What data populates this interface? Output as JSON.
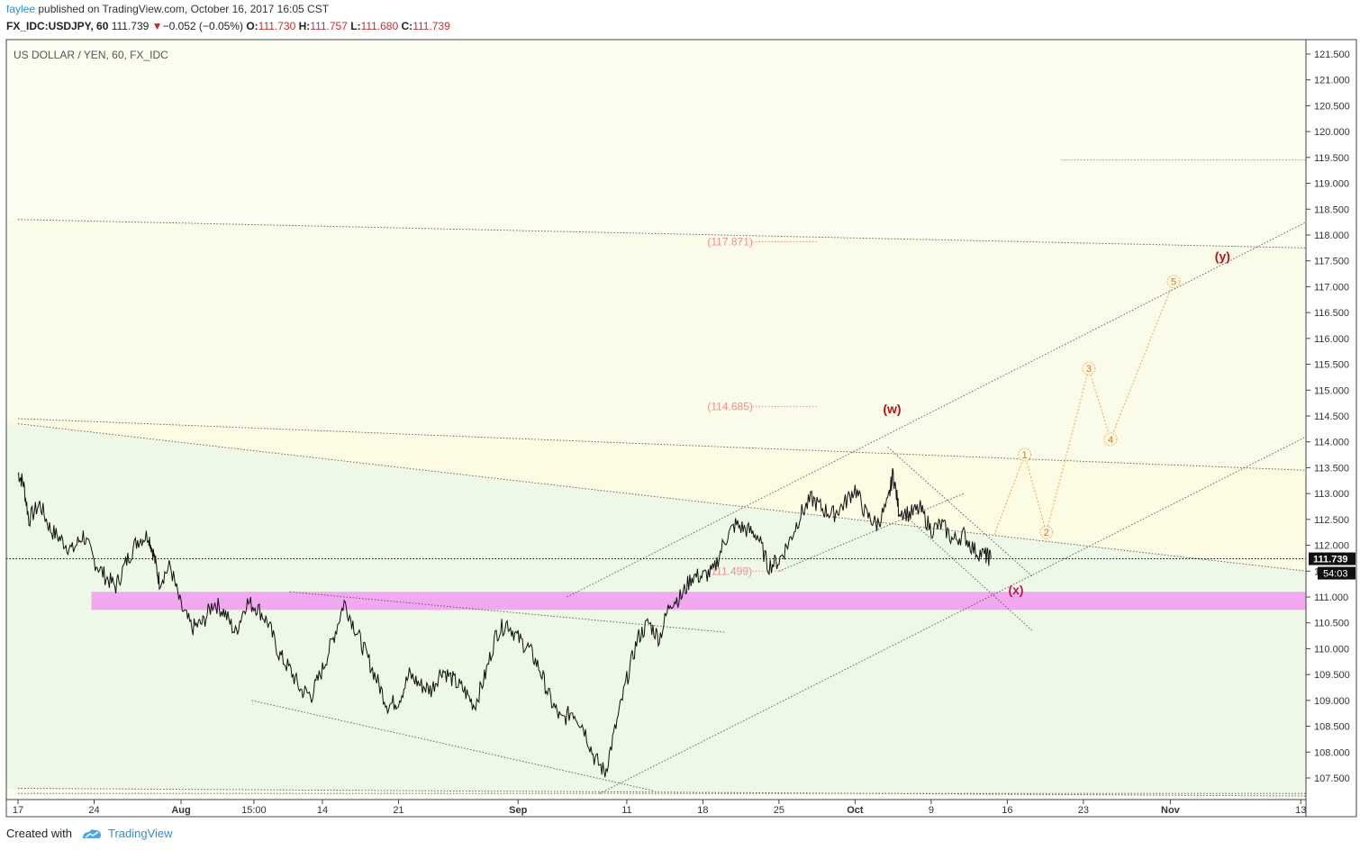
{
  "header": {
    "author": "faylee",
    "published_text": "published on TradingView.com, October 16, 2017 16:05 CST",
    "symbol": "FX_IDC:USDJPY, 60",
    "last": "111.739",
    "change": "−0.052 (−0.05%)",
    "o_label": "O:",
    "o_value": "111.730",
    "h_label": "H:",
    "h_value": "111.757",
    "l_label": "L:",
    "l_value": "111.680",
    "c_label": "C:",
    "c_value": "111.739"
  },
  "footer": {
    "created_with": "Created with",
    "brand": "TradingView"
  },
  "colors": {
    "candle": "#111111",
    "zone": "#f0a8ee",
    "wave_orange": "#f0a34a",
    "wave_red": "#b5121b",
    "fib": "#ef8f8f",
    "price_tag": "#111111"
  },
  "chart_data": {
    "type": "line",
    "title": "US DOLLAR / YEN, 60, FX_IDC",
    "ylim": [
      107.2,
      121.75
    ],
    "yticks": [
      "121.500",
      "121.000",
      "120.500",
      "120.000",
      "119.500",
      "119.000",
      "118.500",
      "118.000",
      "117.500",
      "117.000",
      "116.500",
      "116.000",
      "115.500",
      "115.000",
      "114.500",
      "114.000",
      "113.500",
      "113.000",
      "112.500",
      "112.000",
      "111.500",
      "111.000",
      "110.500",
      "110.000",
      "109.500",
      "109.000",
      "108.500",
      "108.000",
      "107.500"
    ],
    "xlim": [
      0,
      112
    ],
    "xticks": [
      {
        "label": "17",
        "day": 0
      },
      {
        "label": "24",
        "day": 7
      },
      {
        "label": "Aug",
        "day": 15
      },
      {
        "label": "15:00",
        "day": 21.7
      },
      {
        "label": "14",
        "day": 28
      },
      {
        "label": "21",
        "day": 35
      },
      {
        "label": "Sep",
        "day": 46
      },
      {
        "label": "11",
        "day": 56
      },
      {
        "label": "18",
        "day": 63
      },
      {
        "label": "25",
        "day": 70
      },
      {
        "label": "Oct",
        "day": 77
      },
      {
        "label": "9",
        "day": 84
      },
      {
        "label": "16",
        "day": 91
      },
      {
        "label": "23",
        "day": 98
      },
      {
        "label": "Nov",
        "day": 106
      },
      {
        "label": "13",
        "day": 118
      }
    ],
    "series": [
      {
        "values": [
          [
            0,
            113.4
          ],
          [
            0.5,
            113.2
          ],
          [
            1,
            112.5
          ],
          [
            2,
            112.8
          ],
          [
            3,
            112.3
          ],
          [
            4,
            112.1
          ],
          [
            5,
            111.9
          ],
          [
            6,
            112.2
          ],
          [
            7,
            111.7
          ],
          [
            8,
            111.4
          ],
          [
            9,
            111.2
          ],
          [
            10,
            111.7
          ],
          [
            11,
            112.1
          ],
          [
            12,
            112.2
          ],
          [
            12.5,
            111.8
          ],
          [
            13,
            111.3
          ],
          [
            14,
            111.6
          ],
          [
            15,
            110.8
          ],
          [
            16,
            110.4
          ],
          [
            17,
            110.5
          ],
          [
            18,
            110.9
          ],
          [
            19,
            110.7
          ],
          [
            20,
            110.3
          ],
          [
            21,
            110.9
          ],
          [
            22,
            110.8
          ],
          [
            23,
            110.5
          ],
          [
            24,
            109.9
          ],
          [
            25,
            109.6
          ],
          [
            26,
            109.2
          ],
          [
            27,
            109.1
          ],
          [
            28,
            109.6
          ],
          [
            29,
            110.2
          ],
          [
            30,
            110.9
          ],
          [
            31,
            110.4
          ],
          [
            32,
            109.9
          ],
          [
            33,
            109.4
          ],
          [
            34,
            108.9
          ],
          [
            35,
            109.0
          ],
          [
            36,
            109.5
          ],
          [
            37,
            109.3
          ],
          [
            38,
            109.2
          ],
          [
            39,
            109.6
          ],
          [
            40,
            109.4
          ],
          [
            41,
            109.2
          ],
          [
            42,
            108.9
          ],
          [
            43,
            109.5
          ],
          [
            44,
            110.3
          ],
          [
            45,
            110.5
          ],
          [
            46,
            110.2
          ],
          [
            47,
            110.0
          ],
          [
            48,
            109.6
          ],
          [
            49,
            109.0
          ],
          [
            50,
            108.6
          ],
          [
            51,
            108.8
          ],
          [
            52,
            108.5
          ],
          [
            53,
            107.9
          ],
          [
            54,
            107.6
          ],
          [
            55,
            108.5
          ],
          [
            56,
            109.4
          ],
          [
            57,
            110.2
          ],
          [
            58,
            110.5
          ],
          [
            59,
            110.2
          ],
          [
            60,
            110.9
          ],
          [
            61,
            111.0
          ],
          [
            62,
            111.4
          ],
          [
            63,
            111.4
          ],
          [
            64,
            111.5
          ],
          [
            65,
            112.1
          ],
          [
            66,
            112.4
          ],
          [
            67,
            112.3
          ],
          [
            68,
            112.2
          ],
          [
            69,
            111.6
          ],
          [
            70,
            111.7
          ],
          [
            71,
            112.1
          ],
          [
            72,
            112.6
          ],
          [
            73,
            112.9
          ],
          [
            74,
            112.7
          ],
          [
            75,
            112.6
          ],
          [
            76,
            112.8
          ],
          [
            77,
            113.1
          ],
          [
            78,
            112.6
          ],
          [
            79,
            112.4
          ],
          [
            80,
            112.8
          ],
          [
            80.5,
            113.4
          ],
          [
            81,
            112.7
          ],
          [
            82,
            112.6
          ],
          [
            83,
            112.7
          ],
          [
            84,
            112.3
          ],
          [
            85,
            112.4
          ],
          [
            86,
            112.1
          ],
          [
            87,
            112.2
          ],
          [
            88,
            111.9
          ],
          [
            89,
            111.8
          ],
          [
            89.5,
            111.75
          ]
        ]
      }
    ],
    "projection": [
      {
        "label": "1",
        "day": 92.6,
        "price": 113.75
      },
      {
        "label": "2",
        "day": 94.6,
        "price": 112.25
      },
      {
        "label": "3",
        "day": 98.5,
        "price": 115.42
      },
      {
        "label": "4",
        "day": 100.5,
        "price": 114.05
      },
      {
        "label": "5",
        "day": 106.3,
        "price": 117.1
      }
    ],
    "projection_start": {
      "day": 89.8,
      "price": 112.2
    },
    "zone": {
      "from": 110.75,
      "to": 111.1
    },
    "wave_labels": [
      {
        "text": "(w)",
        "day": 80.4,
        "price": 114.55
      },
      {
        "text": "(x)",
        "day": 91.8,
        "price": 111.05
      },
      {
        "text": "(y)",
        "day": 110.8,
        "price": 117.5
      }
    ],
    "fib_levels": [
      {
        "text": "(117.871)",
        "price": 117.87,
        "day_from": 63,
        "day_to": 71
      },
      {
        "text": "(114.685)",
        "price": 114.685,
        "day_from": 63,
        "day_to": 71
      },
      {
        "text": "(111.499)",
        "price": 111.5,
        "day_from": 63,
        "day_to": 68
      }
    ],
    "target_line": {
      "price": 119.45,
      "day_from": 96,
      "day_to": 118.5
    },
    "trendlines": [
      [
        [
          0,
          118.3
        ],
        [
          118.5,
          117.75
        ]
      ],
      [
        [
          0,
          114.45
        ],
        [
          118.5,
          113.45
        ]
      ],
      [
        [
          0,
          114.35
        ],
        [
          118.5,
          111.5
        ]
      ],
      [
        [
          25,
          111.1
        ],
        [
          65,
          110.32
        ]
      ],
      [
        [
          21.5,
          109.0
        ],
        [
          58.5,
          107.25
        ]
      ],
      [
        [
          0,
          107.3
        ],
        [
          118.5,
          107.15
        ]
      ],
      [
        [
          0,
          107.2
        ],
        [
          118.5,
          107.2
        ]
      ],
      [
        [
          53.5,
          107.2
        ],
        [
          118.5,
          114.1
        ]
      ],
      [
        [
          50.5,
          111.0
        ],
        [
          118.5,
          118.25
        ]
      ],
      [
        [
          70,
          111.5
        ],
        [
          87,
          113.0
        ]
      ],
      [
        [
          80,
          113.9
        ],
        [
          93.3,
          111.4
        ]
      ],
      [
        [
          82,
          112.5
        ],
        [
          93.3,
          110.35
        ]
      ]
    ],
    "last_price": "111.739",
    "countdown": "54:03"
  }
}
